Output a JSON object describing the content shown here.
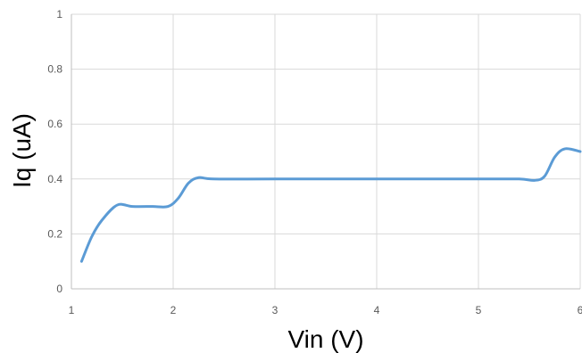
{
  "chart_data": {
    "type": "line",
    "title": "",
    "xlabel": "Vin (V)",
    "ylabel": "Iq (uA)",
    "xlim": [
      1,
      6
    ],
    "ylim": [
      0,
      1
    ],
    "x_ticks": [
      1,
      2,
      3,
      4,
      5,
      6
    ],
    "y_ticks": [
      0,
      0.2,
      0.4,
      0.6,
      0.8,
      1
    ],
    "x_tick_labels": [
      "1",
      "2",
      "3",
      "4",
      "5",
      "6"
    ],
    "y_tick_labels": [
      "0",
      "0.2",
      "0.4",
      "0.6",
      "0.8",
      "1"
    ],
    "grid": true,
    "legend": "none",
    "series": [
      {
        "color": "#5B9BD5",
        "x": [
          1.1,
          1.2,
          1.3,
          1.45,
          1.6,
          1.8,
          1.95,
          2.05,
          2.15,
          2.25,
          2.4,
          3.0,
          4.0,
          5.0,
          5.4,
          5.55,
          5.65,
          5.75,
          5.85,
          6.0
        ],
        "y": [
          0.1,
          0.19,
          0.25,
          0.305,
          0.3,
          0.3,
          0.3,
          0.33,
          0.385,
          0.405,
          0.4,
          0.4,
          0.4,
          0.4,
          0.4,
          0.395,
          0.41,
          0.48,
          0.51,
          0.5
        ]
      }
    ]
  }
}
